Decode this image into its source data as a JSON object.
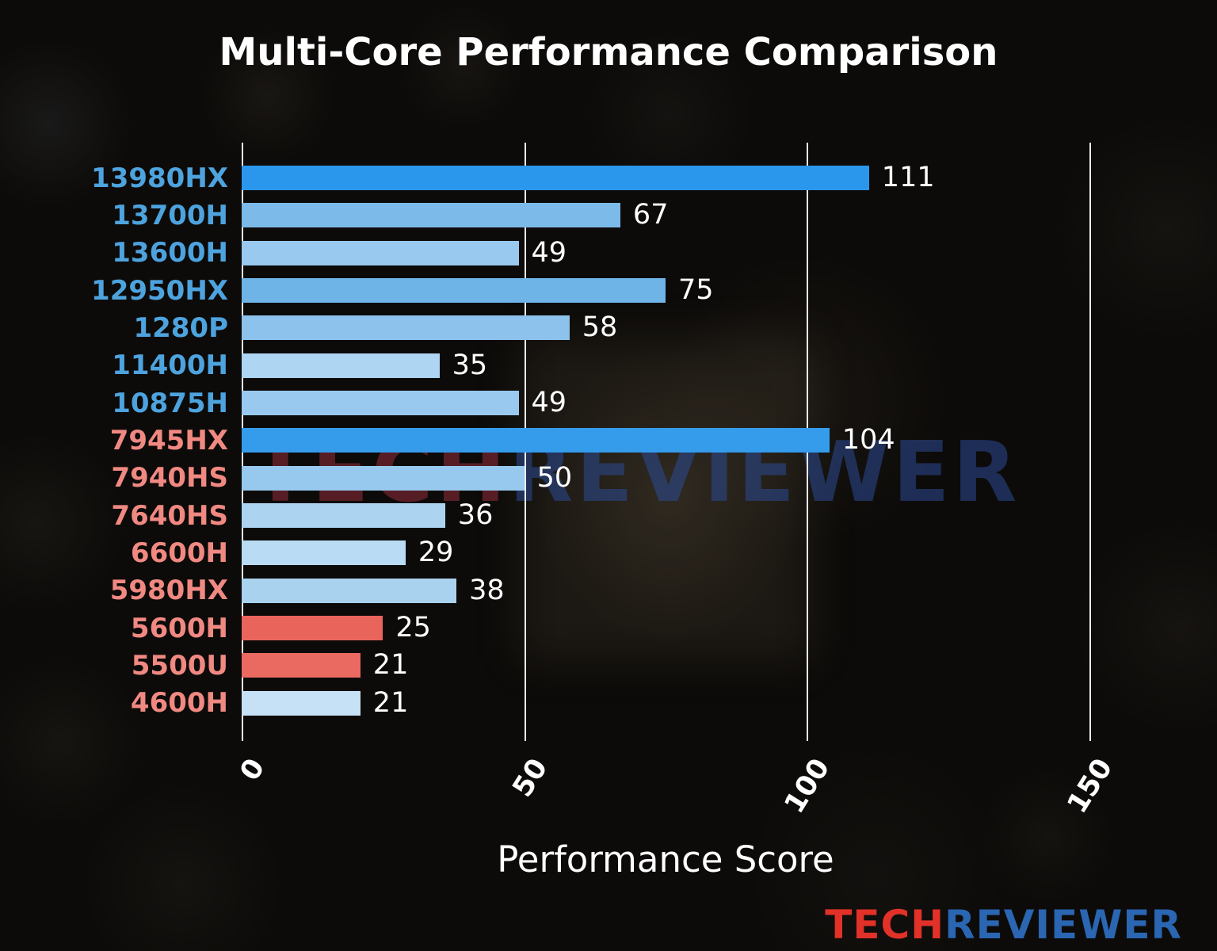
{
  "chart_data": {
    "type": "bar",
    "orientation": "horizontal",
    "title": "Multi-Core Performance Comparison",
    "xlabel": "Performance Score",
    "xlim": [
      0,
      150
    ],
    "xticks": [
      0,
      50,
      100,
      150
    ],
    "grid": true,
    "categories": [
      "13980HX",
      "13700H",
      "13600H",
      "12950HX",
      "1280P",
      "11400H",
      "10875H",
      "7945HX",
      "7940HS",
      "7640HS",
      "6600H",
      "5980HX",
      "5600H",
      "5500U",
      "4600H"
    ],
    "values": [
      111,
      67,
      49,
      75,
      58,
      35,
      49,
      104,
      50,
      36,
      29,
      38,
      25,
      21,
      21
    ],
    "bars": [
      {
        "label": "13980HX",
        "value": 111,
        "bar_color": "#2b97ec",
        "label_color": "#4da3de"
      },
      {
        "label": "13700H",
        "value": 67,
        "bar_color": "#7cbae9",
        "label_color": "#4da3de"
      },
      {
        "label": "13600H",
        "value": 49,
        "bar_color": "#99c9ee",
        "label_color": "#4da3de"
      },
      {
        "label": "12950HX",
        "value": 75,
        "bar_color": "#6fb4e7",
        "label_color": "#4da3de"
      },
      {
        "label": "1280P",
        "value": 58,
        "bar_color": "#8cc2eb",
        "label_color": "#4da3de"
      },
      {
        "label": "11400H",
        "value": 35,
        "bar_color": "#aed5f1",
        "label_color": "#4da3de"
      },
      {
        "label": "10875H",
        "value": 49,
        "bar_color": "#99c9ee",
        "label_color": "#4da3de"
      },
      {
        "label": "7945HX",
        "value": 104,
        "bar_color": "#359cec",
        "label_color": "#f08982"
      },
      {
        "label": "7940HS",
        "value": 50,
        "bar_color": "#97c8ed",
        "label_color": "#f08982"
      },
      {
        "label": "7640HS",
        "value": 36,
        "bar_color": "#acd3f0",
        "label_color": "#f08982"
      },
      {
        "label": "6600H",
        "value": 29,
        "bar_color": "#b9dbf3",
        "label_color": "#f08982"
      },
      {
        "label": "5980HX",
        "value": 38,
        "bar_color": "#a9d2ef",
        "label_color": "#f08982"
      },
      {
        "label": "5600H",
        "value": 25,
        "bar_color": "#e9655c",
        "label_color": "#f08982"
      },
      {
        "label": "5500U",
        "value": 21,
        "bar_color": "#ea6a61",
        "label_color": "#f08982"
      },
      {
        "label": "4600H",
        "value": 21,
        "bar_color": "#c6e1f5",
        "label_color": "#f08982"
      }
    ]
  },
  "watermark": {
    "tech": "TECH",
    "reviewer": "REVIEWER"
  },
  "logo": {
    "tech": "TECH",
    "reviewer": "REVIEWER",
    "tech_color": "#e23128",
    "reviewer_color": "#2a66b2"
  },
  "colors": {
    "intel_label": "#4da3de",
    "amd_label": "#f08982",
    "grid": "#ffffff",
    "value_label": "#ffffff",
    "background": "#0d0b09"
  }
}
